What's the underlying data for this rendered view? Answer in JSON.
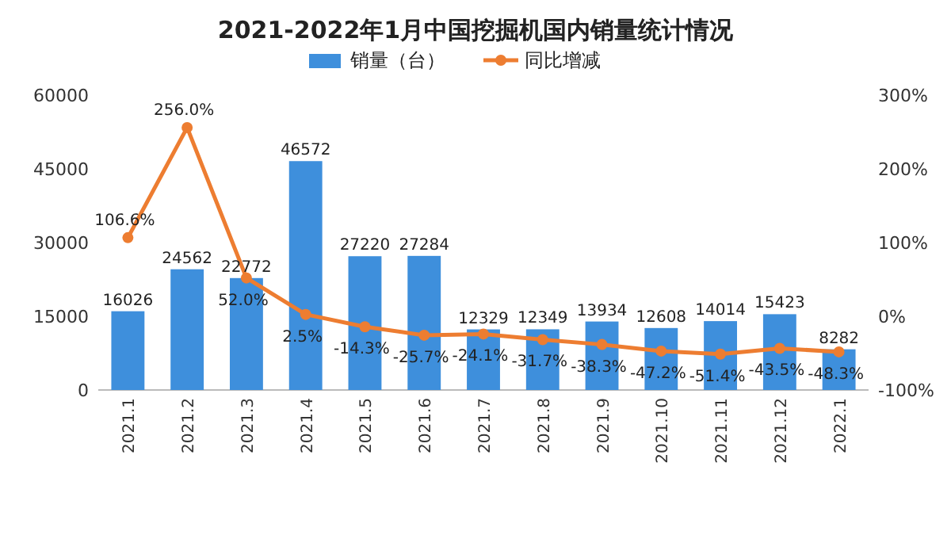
{
  "chart_data": {
    "type": "bar",
    "title": "2021-2022年1月中国挖掘机国内销量统计情况",
    "categories": [
      "2021.1",
      "2021.2",
      "2021.3",
      "2021.4",
      "2021.5",
      "2021.6",
      "2021.7",
      "2021.8",
      "2021.9",
      "2021.10",
      "2021.11",
      "2021.12",
      "2022.1"
    ],
    "series": [
      {
        "name": "销量（台）",
        "color": "#3e8fdc",
        "values": [
          16026,
          24562,
          22772,
          46572,
          27220,
          27284,
          12329,
          12349,
          13934,
          12608,
          14014,
          15423,
          8282
        ],
        "value_labels": [
          "16026",
          "24562",
          "22772",
          "46572",
          "27220",
          "27284",
          "12329",
          "12349",
          "13934",
          "12608",
          "14014",
          "15423",
          "8282"
        ]
      },
      {
        "name": "同比增减",
        "type": "line",
        "axis": "y2",
        "color": "#ed7d31",
        "marker": "circle",
        "values": [
          106.6,
          256.0,
          52.0,
          2.5,
          -14.3,
          -25.7,
          -24.1,
          -31.7,
          -38.3,
          -47.2,
          -51.4,
          -43.5,
          -48.3
        ],
        "value_labels": [
          "106.6%",
          "256.0%",
          "52.0%",
          "2.5%",
          "-14.3%",
          "-25.7%",
          "-24.1%",
          "-31.7%",
          "-38.3%",
          "-47.2%",
          "-51.4%",
          "-43.5%",
          "-48.3%"
        ]
      }
    ],
    "ylim": [
      0,
      60000
    ],
    "yticks": [
      0,
      15000,
      30000,
      45000,
      60000
    ],
    "y2lim": [
      -100,
      300
    ],
    "y2ticks": [
      {
        "value": -100,
        "label": "-100%"
      },
      {
        "value": 0,
        "label": "0%"
      },
      {
        "value": 100,
        "label": "100%"
      },
      {
        "value": 200,
        "label": "200%"
      },
      {
        "value": 300,
        "label": "300%"
      }
    ],
    "legend": "top"
  }
}
